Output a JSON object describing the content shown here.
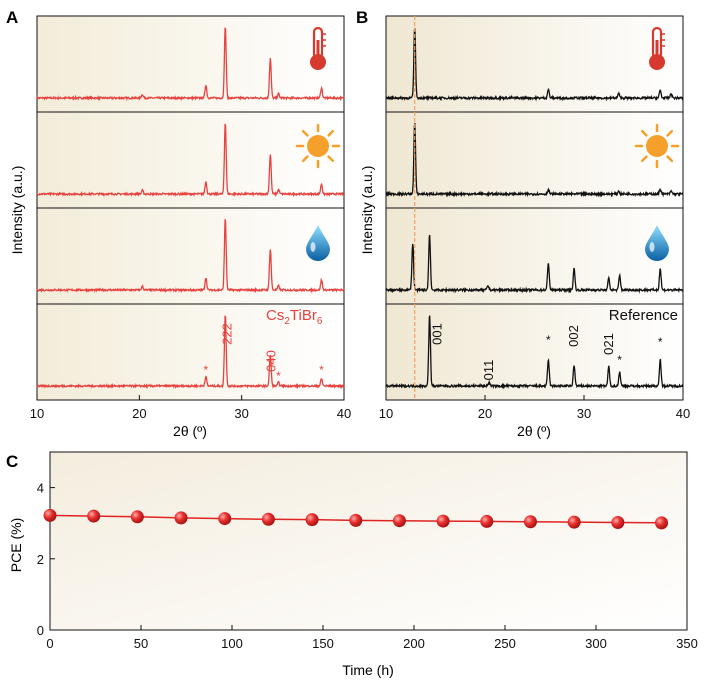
{
  "colors": {
    "red": "#e8423f",
    "black": "#111111",
    "orange_line": "#f0a060",
    "sun": "#f4a02a",
    "drop_light": "#6fd0f5",
    "drop_dark": "#0a64a8",
    "thermo": "#d63a2f",
    "bg_warm": "#f7f1e1",
    "marker": "#e02222"
  },
  "chart_data": [
    {
      "panel": "A",
      "type": "line",
      "title": "",
      "xlabel": "2θ (º)",
      "ylabel": "Intensity (a.u.)",
      "xlim": [
        10,
        40
      ],
      "xticks": [
        "10",
        "20",
        "30",
        "40"
      ],
      "series": [
        {
          "name": "heat",
          "icon": "thermometer-icon",
          "peaks": [
            [
              20.3,
              0.05
            ],
            [
              26.5,
              0.18
            ],
            [
              28.4,
              1.0
            ],
            [
              32.8,
              0.55
            ],
            [
              33.6,
              0.06
            ],
            [
              37.8,
              0.14
            ]
          ]
        },
        {
          "name": "light",
          "icon": "sun-icon",
          "peaks": [
            [
              20.3,
              0.05
            ],
            [
              26.5,
              0.17
            ],
            [
              28.4,
              1.0
            ],
            [
              32.8,
              0.55
            ],
            [
              33.6,
              0.06
            ],
            [
              37.8,
              0.14
            ]
          ]
        },
        {
          "name": "humidity",
          "icon": "water-drop-icon",
          "peaks": [
            [
              20.3,
              0.05
            ],
            [
              26.5,
              0.17
            ],
            [
              28.4,
              1.0
            ],
            [
              32.8,
              0.57
            ],
            [
              33.6,
              0.06
            ],
            [
              37.8,
              0.14
            ]
          ]
        },
        {
          "name": "Cs2TiBr6 reference",
          "icon": "",
          "peaks": [
            [
              26.5,
              0.13
            ],
            [
              28.4,
              1.0
            ],
            [
              32.8,
              0.43
            ],
            [
              33.6,
              0.05
            ],
            [
              37.8,
              0.1
            ]
          ]
        }
      ],
      "annotations": {
        "compound": "Cs2TiBr6",
        "labels": [
          "222",
          "040"
        ],
        "stars": [
          "*",
          "*",
          "*"
        ]
      }
    },
    {
      "panel": "B",
      "type": "line",
      "title": "",
      "xlabel": "2θ (º)",
      "ylabel": "Intensity (a.u.)",
      "xlim": [
        10,
        40
      ],
      "xticks": [
        "10",
        "20",
        "30",
        "40"
      ],
      "dashed_x": 12.9,
      "series": [
        {
          "name": "heat",
          "icon": "thermometer-icon",
          "peaks": [
            [
              12.9,
              1.0
            ],
            [
              26.4,
              0.12
            ],
            [
              33.5,
              0.06
            ],
            [
              37.7,
              0.11
            ],
            [
              38.8,
              0.06
            ]
          ]
        },
        {
          "name": "light",
          "icon": "sun-icon",
          "peaks": [
            [
              12.9,
              1.0
            ],
            [
              26.4,
              0.06
            ],
            [
              33.5,
              0.04
            ],
            [
              37.7,
              0.07
            ],
            [
              38.8,
              0.04
            ]
          ]
        },
        {
          "name": "humidity",
          "icon": "water-drop-icon",
          "peaks": [
            [
              12.7,
              0.65
            ],
            [
              14.4,
              0.78
            ],
            [
              20.3,
              0.06
            ],
            [
              26.4,
              0.38
            ],
            [
              29.0,
              0.3
            ],
            [
              32.5,
              0.16
            ],
            [
              33.6,
              0.2
            ],
            [
              37.7,
              0.3
            ]
          ]
        },
        {
          "name": "Reference",
          "icon": "",
          "peaks": [
            [
              14.4,
              1.0
            ],
            [
              20.4,
              0.05
            ],
            [
              26.4,
              0.37
            ],
            [
              29.0,
              0.29
            ],
            [
              32.5,
              0.27
            ],
            [
              33.6,
              0.2
            ],
            [
              37.7,
              0.38
            ]
          ]
        }
      ],
      "annotations": {
        "reference_label": "Reference",
        "labels": [
          "001",
          "011",
          "002",
          "021"
        ],
        "stars": [
          "*",
          "*",
          "*"
        ]
      }
    },
    {
      "panel": "C",
      "type": "scatter",
      "title": "",
      "xlabel": "Time (h)",
      "ylabel": "PCE (%)",
      "xlim": [
        0,
        350
      ],
      "ylim": [
        0,
        5
      ],
      "xticks": [
        "0",
        "50",
        "100",
        "150",
        "200",
        "250",
        "300",
        "350"
      ],
      "yticks": [
        "0",
        "2",
        "4"
      ],
      "x": [
        0,
        24,
        48,
        72,
        96,
        120,
        144,
        168,
        192,
        216,
        240,
        264,
        288,
        312,
        336
      ],
      "y": [
        3.22,
        3.2,
        3.18,
        3.15,
        3.13,
        3.11,
        3.1,
        3.08,
        3.07,
        3.06,
        3.05,
        3.04,
        3.03,
        3.02,
        3.01
      ]
    }
  ],
  "panel_labels": {
    "a": "A",
    "b": "B",
    "c": "C"
  }
}
